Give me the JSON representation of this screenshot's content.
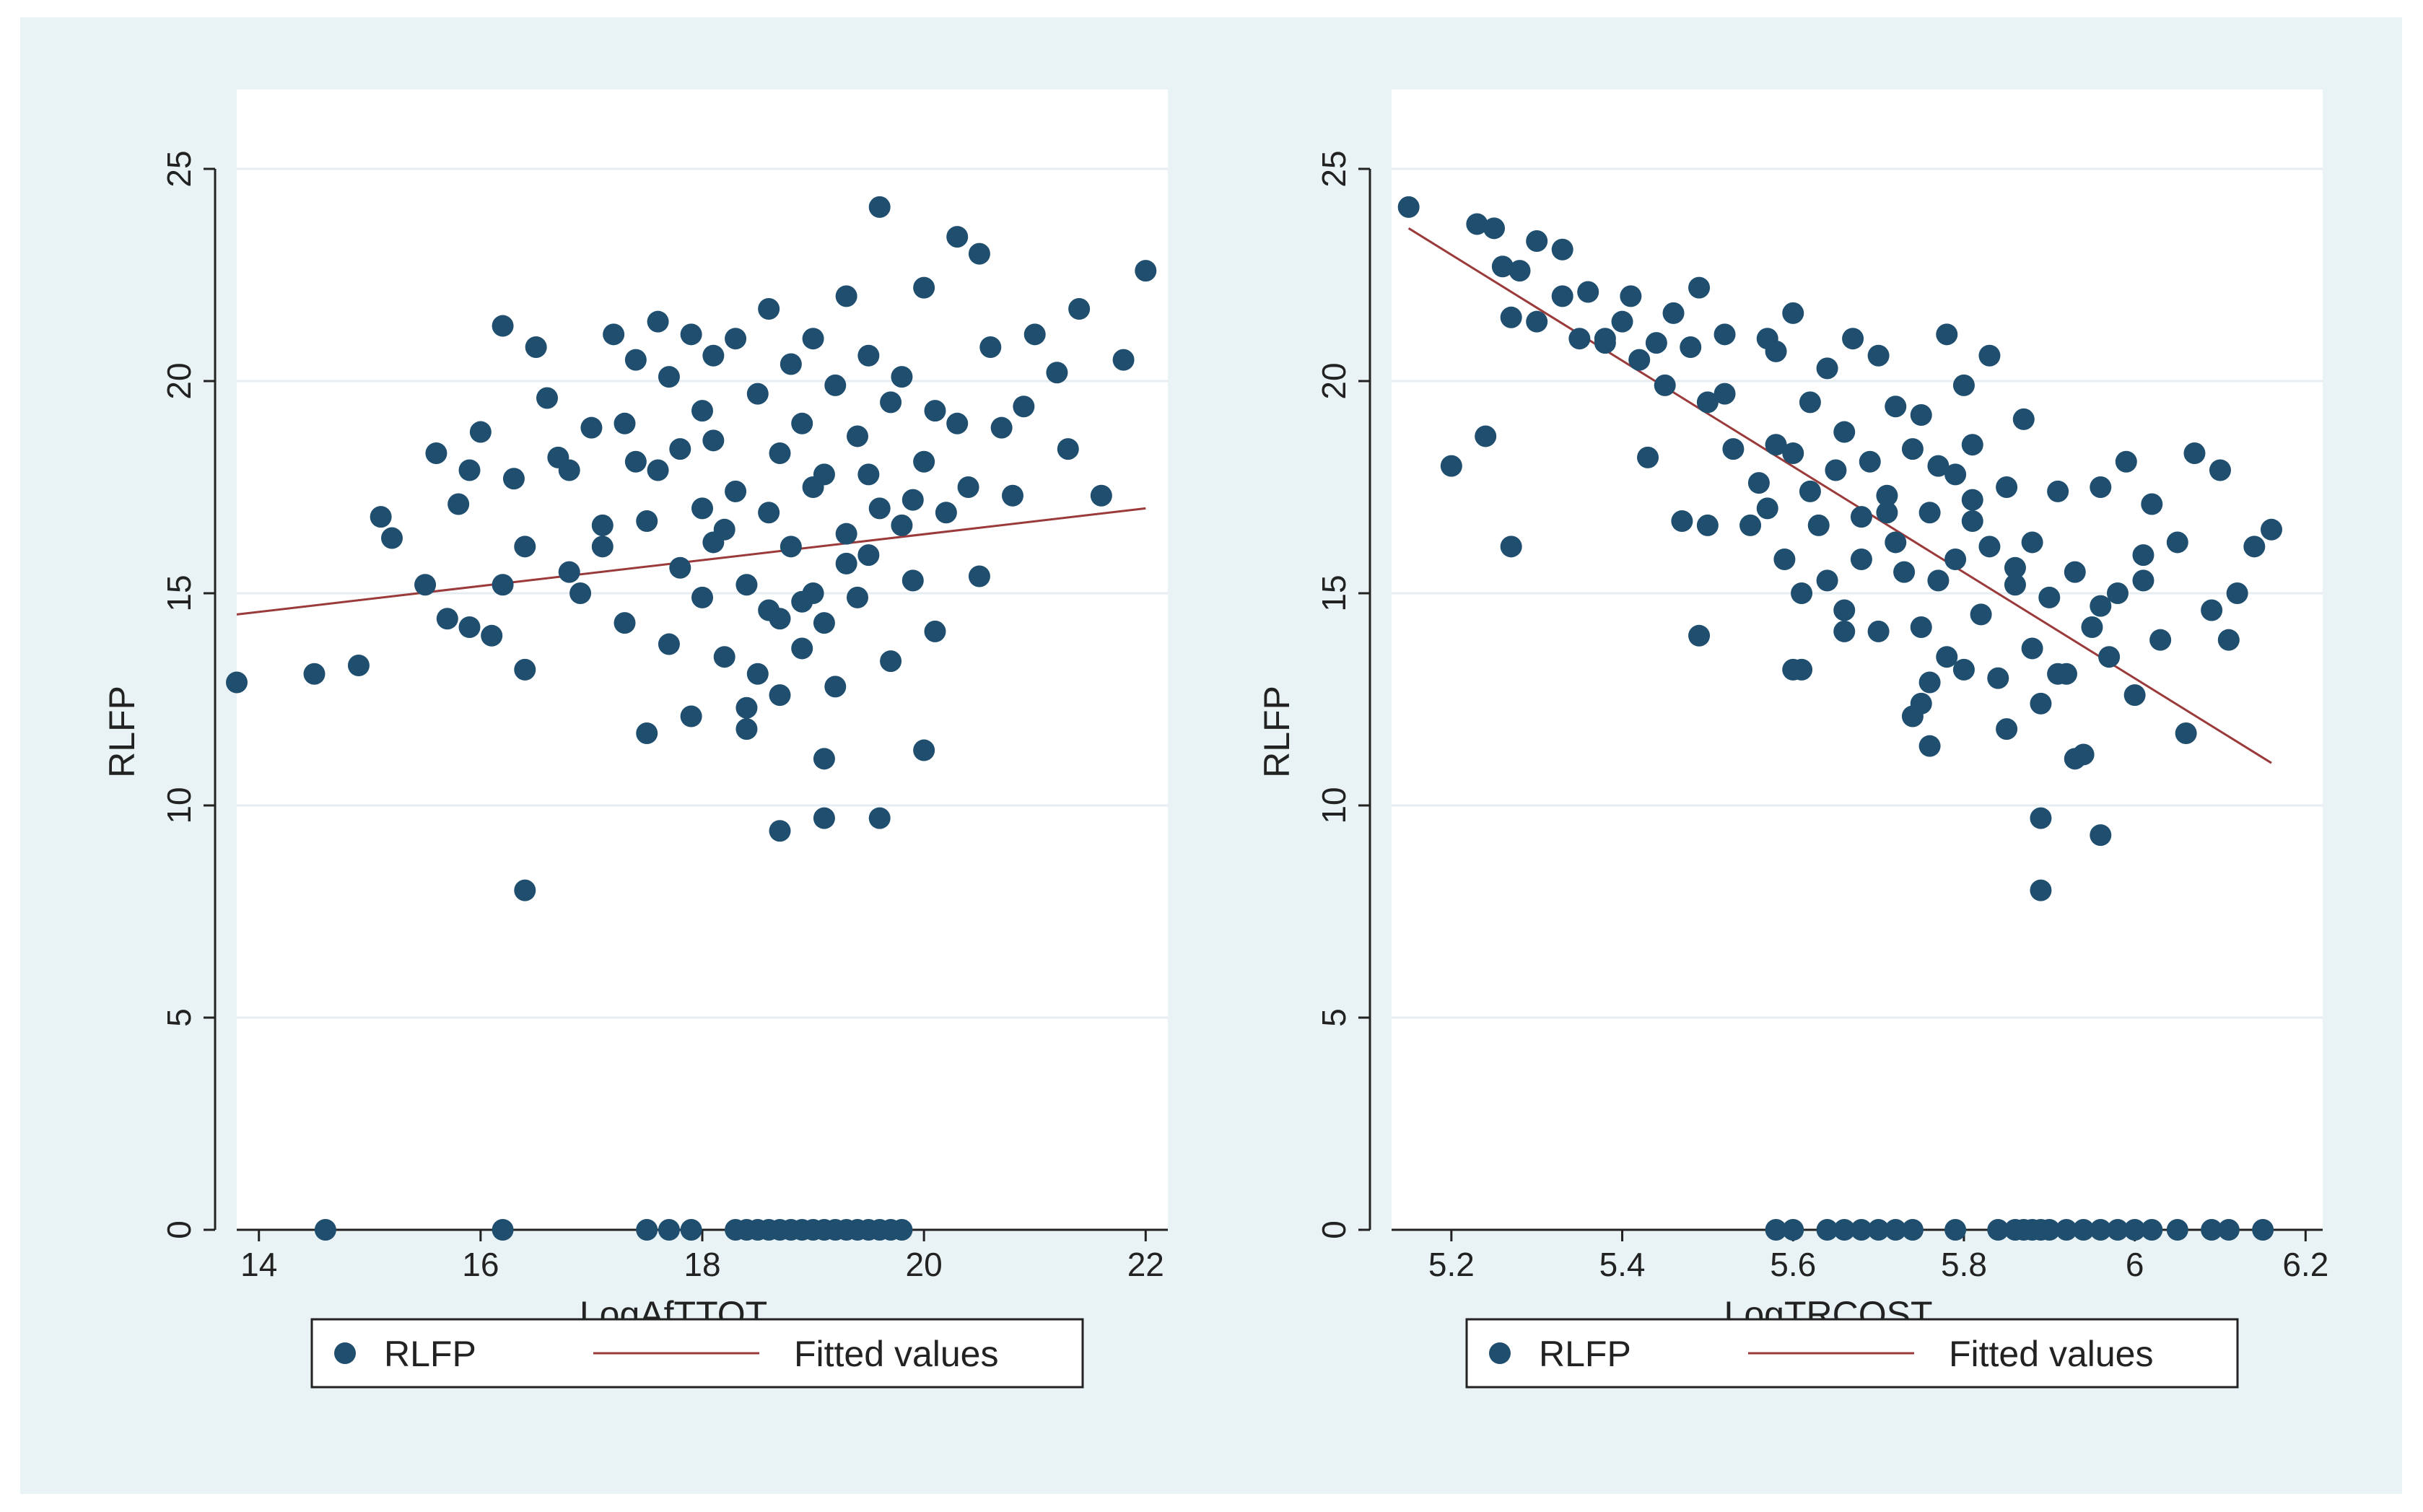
{
  "chart_data": [
    {
      "type": "scatter",
      "title": "",
      "xlabel": "LogAfTTOT",
      "ylabel": "RLFP",
      "xlim": [
        13.8,
        22.2
      ],
      "ylim": [
        0,
        25
      ],
      "xticks": [
        "14",
        "16",
        "18",
        "20",
        "22"
      ],
      "xtick_values": [
        14,
        16,
        18,
        20,
        22
      ],
      "yticks": [
        "0",
        "5",
        "10",
        "15",
        "20",
        "25"
      ],
      "ytick_values": [
        0,
        5,
        10,
        15,
        20,
        25
      ],
      "grid": "horizontal",
      "legend": {
        "placement": "bottom",
        "items": [
          "RLFP",
          "Fitted values"
        ]
      },
      "colors": {
        "points": "#1f4e6e",
        "fit": "#9b3a3a"
      },
      "series": [
        {
          "name": "RLFP",
          "type": "scatter",
          "x": [
            13.8,
            14.5,
            14.9,
            15.1,
            15.2,
            15.5,
            15.6,
            15.7,
            15.8,
            15.9,
            16.0,
            16.1,
            16.2,
            16.2,
            16.3,
            16.4,
            16.4,
            16.5,
            16.6,
            16.7,
            16.8,
            16.9,
            17.0,
            17.1,
            17.2,
            17.3,
            17.3,
            17.4,
            17.5,
            17.5,
            17.6,
            17.6,
            17.7,
            17.7,
            17.8,
            17.8,
            17.9,
            17.9,
            18.0,
            18.0,
            18.0,
            18.1,
            18.1,
            18.2,
            18.2,
            18.3,
            18.3,
            18.4,
            18.4,
            18.5,
            18.5,
            18.6,
            18.6,
            18.7,
            18.7,
            18.7,
            18.8,
            18.8,
            18.9,
            18.9,
            19.0,
            19.0,
            19.0,
            19.1,
            19.1,
            19.2,
            19.2,
            19.3,
            19.3,
            19.4,
            19.4,
            19.5,
            19.5,
            19.6,
            19.6,
            19.7,
            19.7,
            19.8,
            19.8,
            19.9,
            20.0,
            20.0,
            20.1,
            20.1,
            20.2,
            20.3,
            20.4,
            20.5,
            20.5,
            20.6,
            20.7,
            20.8,
            20.9,
            21.0,
            21.2,
            21.3,
            21.4,
            21.6,
            21.8,
            22.0,
            16.4,
            18.7,
            19.1,
            19.6,
            19.1,
            18.4,
            20.0,
            15.9,
            16.8,
            17.4,
            18.1,
            18.9,
            19.3,
            19.9,
            20.3,
            17.1,
            18.6,
            19.5,
            14.6,
            16.2,
            17.5,
            17.7,
            17.9,
            18.3,
            18.4,
            18.5,
            18.6,
            18.7,
            18.8,
            18.9,
            19.0,
            19.1,
            19.2,
            19.3,
            19.4,
            19.5,
            19.6,
            19.7,
            19.8
          ],
          "y": [
            12.9,
            13.1,
            13.3,
            16.8,
            16.3,
            15.2,
            18.3,
            14.4,
            17.1,
            14.2,
            18.8,
            14.0,
            21.3,
            15.2,
            17.7,
            13.2,
            16.1,
            20.8,
            19.6,
            18.2,
            17.9,
            15.0,
            18.9,
            16.6,
            21.1,
            19.0,
            14.3,
            18.1,
            11.7,
            16.7,
            21.4,
            17.9,
            20.1,
            13.8,
            15.6,
            18.4,
            12.1,
            21.1,
            17.0,
            19.3,
            14.9,
            18.6,
            20.6,
            13.5,
            16.5,
            21.0,
            17.4,
            11.8,
            15.2,
            19.7,
            13.1,
            16.9,
            21.7,
            12.6,
            18.3,
            14.4,
            20.4,
            16.1,
            13.7,
            19.0,
            17.5,
            15.0,
            21.0,
            14.3,
            17.8,
            19.9,
            12.8,
            16.4,
            22.0,
            14.9,
            18.7,
            20.6,
            15.9,
            24.1,
            17.0,
            19.5,
            13.4,
            16.6,
            20.1,
            15.3,
            18.1,
            22.2,
            14.1,
            19.3,
            16.9,
            23.4,
            17.5,
            15.4,
            23.0,
            20.8,
            18.9,
            17.3,
            19.4,
            21.1,
            20.2,
            18.4,
            21.7,
            17.3,
            20.5,
            22.6,
            8.0,
            9.4,
            9.7,
            9.7,
            11.1,
            12.3,
            11.3,
            17.9,
            15.5,
            20.5,
            16.2,
            14.8,
            15.7,
            17.2,
            19.0,
            16.1,
            14.6,
            17.8,
            0,
            0,
            0,
            0,
            0,
            0,
            0,
            0,
            0,
            0,
            0,
            0,
            0,
            0,
            0,
            0,
            0,
            0,
            0,
            0,
            0
          ]
        },
        {
          "name": "Fitted values",
          "type": "line",
          "x": [
            13.8,
            22.0
          ],
          "y": [
            14.5,
            17.0
          ]
        }
      ]
    },
    {
      "type": "scatter",
      "title": "",
      "xlabel": "LogTRCOST",
      "ylabel": "RLFP",
      "xlim": [
        5.13,
        6.22
      ],
      "ylim": [
        0,
        25
      ],
      "xticks": [
        "5.2",
        "5.4",
        "5.6",
        "5.8",
        "6",
        "6.2"
      ],
      "xtick_values": [
        5.2,
        5.4,
        5.6,
        5.8,
        6.0,
        6.2
      ],
      "yticks": [
        "0",
        "5",
        "10",
        "15",
        "20",
        "25"
      ],
      "ytick_values": [
        0,
        5,
        10,
        15,
        20,
        25
      ],
      "grid": "horizontal",
      "legend": {
        "placement": "bottom",
        "items": [
          "RLFP",
          "Fitted values"
        ]
      },
      "colors": {
        "points": "#1f4e6e",
        "fit": "#9b3a3a"
      },
      "series": [
        {
          "name": "RLFP",
          "type": "scatter",
          "x": [
            5.15,
            5.2,
            5.23,
            5.24,
            5.25,
            5.26,
            5.27,
            5.28,
            5.3,
            5.33,
            5.35,
            5.36,
            5.38,
            5.4,
            5.41,
            5.42,
            5.44,
            5.45,
            5.46,
            5.48,
            5.49,
            5.5,
            5.5,
            5.52,
            5.53,
            5.55,
            5.56,
            5.57,
            5.58,
            5.59,
            5.6,
            5.6,
            5.61,
            5.62,
            5.62,
            5.63,
            5.64,
            5.64,
            5.65,
            5.66,
            5.66,
            5.67,
            5.68,
            5.68,
            5.69,
            5.7,
            5.7,
            5.71,
            5.72,
            5.72,
            5.73,
            5.74,
            5.74,
            5.75,
            5.75,
            5.76,
            5.76,
            5.77,
            5.77,
            5.78,
            5.78,
            5.79,
            5.79,
            5.8,
            5.8,
            5.81,
            5.81,
            5.82,
            5.83,
            5.83,
            5.84,
            5.85,
            5.85,
            5.86,
            5.87,
            5.88,
            5.88,
            5.89,
            5.9,
            5.91,
            5.92,
            5.93,
            5.94,
            5.95,
            5.96,
            5.97,
            5.98,
            5.99,
            6.0,
            6.01,
            6.02,
            6.03,
            6.05,
            6.07,
            6.09,
            6.1,
            6.12,
            6.14,
            6.16,
            5.89,
            5.89,
            5.96,
            5.93,
            5.75,
            5.6,
            5.49,
            5.27,
            5.3,
            5.33,
            5.38,
            5.43,
            5.47,
            5.52,
            5.57,
            5.58,
            5.61,
            5.66,
            5.71,
            5.76,
            5.81,
            5.86,
            5.91,
            5.96,
            6.01,
            6.06,
            6.11,
            5.58,
            5.6,
            5.64,
            5.66,
            5.68,
            5.7,
            5.72,
            5.74,
            5.79,
            5.84,
            5.86,
            5.87,
            5.88,
            5.89,
            5.9,
            5.92,
            5.94,
            5.96,
            5.98,
            6.0,
            6.02,
            6.05,
            6.09,
            6.11,
            6.15
          ],
          "y": [
            24.1,
            18.0,
            23.7,
            18.7,
            23.6,
            22.7,
            21.5,
            22.6,
            23.3,
            23.1,
            21.0,
            22.1,
            20.9,
            21.4,
            22.0,
            20.5,
            20.9,
            19.9,
            21.6,
            20.8,
            22.2,
            16.6,
            19.5,
            21.1,
            18.4,
            16.6,
            17.6,
            21.0,
            20.7,
            15.8,
            21.6,
            18.3,
            13.2,
            17.4,
            19.5,
            16.6,
            15.3,
            20.3,
            17.9,
            14.6,
            18.8,
            21.0,
            16.8,
            15.8,
            18.1,
            14.1,
            20.6,
            17.3,
            16.2,
            19.4,
            15.5,
            12.1,
            18.4,
            14.2,
            19.2,
            16.9,
            11.4,
            18.0,
            15.3,
            21.1,
            13.5,
            17.8,
            15.8,
            19.9,
            13.2,
            16.7,
            18.5,
            14.5,
            16.1,
            20.6,
            13.0,
            17.5,
            11.8,
            15.2,
            19.1,
            13.7,
            16.2,
            12.4,
            14.9,
            17.4,
            13.1,
            15.5,
            11.2,
            14.2,
            17.5,
            13.5,
            15.0,
            18.1,
            12.6,
            15.3,
            17.1,
            13.9,
            16.2,
            18.3,
            14.6,
            17.9,
            15.0,
            16.1,
            16.5,
            9.7,
            8.0,
            9.3,
            11.1,
            12.4,
            13.2,
            14.0,
            16.1,
            21.4,
            22.0,
            21.0,
            18.2,
            16.7,
            19.7,
            17.0,
            18.5,
            15.0,
            14.1,
            16.9,
            12.9,
            17.2,
            15.6,
            13.1,
            14.7,
            15.9,
            11.7,
            13.9,
            0,
            0,
            0,
            0,
            0,
            0,
            0,
            0,
            0,
            0,
            0,
            0,
            0,
            0,
            0,
            0,
            0,
            0,
            0,
            0,
            0,
            0,
            0,
            0,
            0
          ]
        },
        {
          "name": "Fitted values",
          "type": "line",
          "x": [
            5.15,
            6.16
          ],
          "y": [
            23.6,
            11.0
          ]
        }
      ]
    }
  ]
}
